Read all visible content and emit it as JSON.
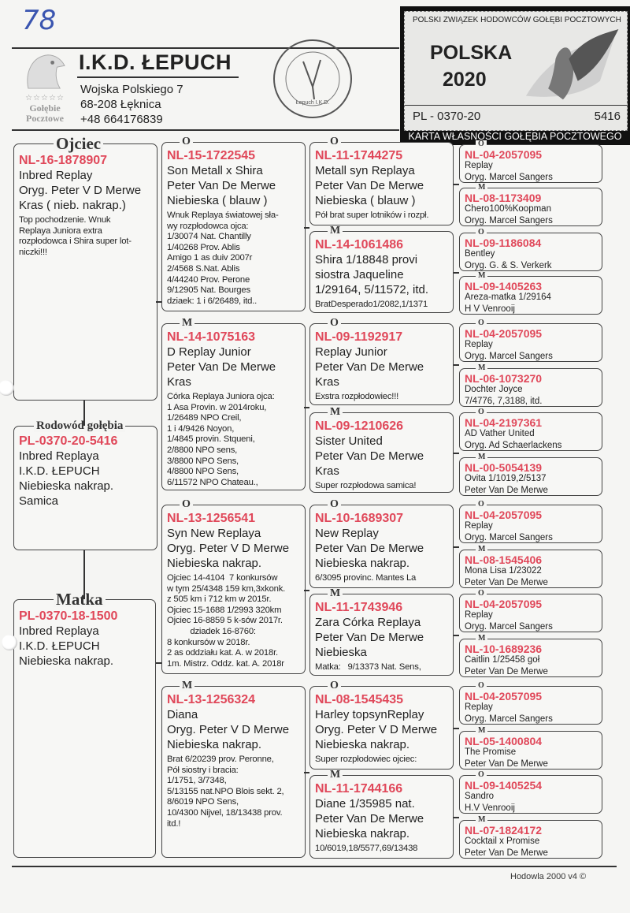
{
  "handwritten_number": "78",
  "header": {
    "title": "I.K.D. ŁEPUCH",
    "address_lines": [
      "Wojska Polskiego 7",
      "68-208 Łęknica",
      "+48  664176839"
    ],
    "logo_text": [
      "☆☆☆☆☆",
      "Gołębie",
      "Pocztowe"
    ],
    "stamp_text": "Hodowla Gołębi Pocztowych Łepuch I.K.D. ul. Wojska Polskiego 7 68-208 Łęknica"
  },
  "card": {
    "association": "POLSKI ZWIĄZEK HODOWCÓW GOŁĘBI POCZTOWYCH",
    "country": "POLSKA",
    "year": "2020",
    "ring_prefix": "PL - 0370-20",
    "ring_number": "5416",
    "caption": "KARTA WŁASNOŚCI GOŁĘBIA POCZTOWEGO"
  },
  "colors": {
    "ring": "#e0485a",
    "border": "#444444",
    "card": "#111111"
  },
  "pedigree": {
    "father": {
      "label": "Ojciec",
      "ring": "NL-16-1878907",
      "lines": [
        "Inbred Replay",
        "Oryg. Peter V D Merwe",
        "Kras  ( nieb. nakrap.)"
      ],
      "note": "Top pochodzenie. Wnuk\nReplaya Juniora extra\nrozpłodowca i Shira super lot-\nniczki!!!"
    },
    "subject": {
      "label": "Rodowód gołębia",
      "ring": "PL-0370-20-5416",
      "lines": [
        "Inbred Replaya",
        "I.K.D. ŁEPUCH",
        "Niebieska nakrap.",
        "Samica"
      ],
      "note": ""
    },
    "mother": {
      "label": "Matka",
      "ring": "PL-0370-18-1500",
      "lines": [
        "Inbred Replaya",
        "I.K.D. ŁEPUCH",
        "Niebieska nakrap."
      ],
      "note": ""
    },
    "gen2": [
      {
        "label": "O",
        "ring": "NL-15-1722545",
        "lines": [
          "Son Metall x Shira",
          "Peter Van De Merwe",
          "Niebieska ( blauw )"
        ],
        "note": "Wnuk Replaya światowej sła-\nwy rozpłodowca ojca:\n1/30074 Nat. Chantilly\n1/40268 Prov. Ablis\nAmigo 1 as duiv 2007r\n2/4568 S.Nat. Ablis\n4/44240 Prov. Perone\n9/12905 Nat. Bourges\ndziaek: 1 i 6/26489, itd.."
      },
      {
        "label": "M",
        "ring": "NL-14-1075163",
        "lines": [
          "D Replay Junior",
          "Peter Van De Merwe",
          "Kras"
        ],
        "note": "Córka Replaya Juniora ojca:\n1 Asa Provin. w 2014roku,\n1/26489 NPO Creil,\n1 i 4/9426 Noyon,\n1/4845 provin. Stqueni,\n2/8800 NPO sens,\n3/8800 NPO Sens,\n4/8800 NPO Sens,\n6/11572 NPO Chateau.,"
      },
      {
        "label": "O",
        "ring": "NL-13-1256541",
        "lines": [
          "Syn New Replaya",
          "Oryg. Peter V D Merwe",
          "Niebieska nakrap."
        ],
        "note": "Ojciec 14-4104  7 konkursów\nw tym 25/4348 159 km,3xkonk.\nz 505 km i 712 km w 2015r.\nOjciec 15-1688 1/2993 320km\nOjciec 16-8859 5 k-sów 2017r.\n          dziadek 16-8760:\n8 konkursów w 2018r.\n2 as oddziału kat. A. w 2018r.\n1m. Mistrz. Oddz. kat. A. 2018r"
      },
      {
        "label": "M",
        "ring": "NL-13-1256324",
        "lines": [
          "Diana",
          "Oryg. Peter V D Merwe",
          "Niebieska nakrap."
        ],
        "note": "Brat 6/20239 prov. Peronne,\nPół siostry i bracia:\n1/1751, 3/7348,\n5/13155 nat.NPO Blois sekt. 2,\n8/6019 NPO Sens,\n10/4300 Nijvel, 18/13438 prov.\nitd.!"
      }
    ],
    "gen3": [
      {
        "label": "O",
        "ring": "NL-11-1744275",
        "lines": [
          "Metall   syn Replaya",
          "Peter Van De Merwe",
          "Niebieska ( blauw )"
        ],
        "note": "Pół brat super lotników i rozpł."
      },
      {
        "label": "M",
        "ring": "NL-14-1061486",
        "lines": [
          "Shira  1/18848 provi",
          "siostra Jaqueline",
          "1/29164, 5/11572, itd."
        ],
        "note": "BratDesperado1/2082,1/1371"
      },
      {
        "label": "O",
        "ring": "NL-09-1192917",
        "lines": [
          "Replay Junior",
          "Peter Van De Merwe",
          "Kras"
        ],
        "note": "Exstra rozpłodowiec!!!"
      },
      {
        "label": "M",
        "ring": "NL-09-1210626",
        "lines": [
          "Sister United",
          "Peter Van De Merwe",
          "Kras"
        ],
        "note": "Super rozpłodowa samica!"
      },
      {
        "label": "O",
        "ring": "NL-10-1689307",
        "lines": [
          "New Replay",
          "Peter Van De Merwe",
          "Niebieska nakrap."
        ],
        "note": "6/3095 provinc. Mantes La"
      },
      {
        "label": "M",
        "ring": "NL-11-1743946",
        "lines": [
          "Zara Córka Replaya",
          "Peter Van De Merwe",
          "Niebieska"
        ],
        "note": "Matka:   9/13373 Nat. Sens,"
      },
      {
        "label": "O",
        "ring": "NL-08-1545435",
        "lines": [
          "Harley topsynReplay",
          "Oryg. Peter V D Merwe",
          "Niebieska nakrap."
        ],
        "note": "Super rozpłodowiec ojciec:"
      },
      {
        "label": "M",
        "ring": "NL-11-1744166",
        "lines": [
          "Diane  1/35985 nat.",
          "Peter Van De Merwe",
          "Niebieska nakrap."
        ],
        "note": "10/6019,18/5577,69/13438"
      }
    ],
    "gen4": [
      {
        "label": "O",
        "ring": "NL-04-2057095",
        "lines": [
          "Replay",
          "Oryg. Marcel Sangers"
        ]
      },
      {
        "label": "M",
        "ring": "NL-08-1173409",
        "lines": [
          "Chero100%Koopman",
          "Oryg. Marcel Sangers"
        ]
      },
      {
        "label": "O",
        "ring": "NL-09-1186084",
        "lines": [
          "Bentley",
          "Oryg. G. & S. Verkerk"
        ]
      },
      {
        "label": "M",
        "ring": "NL-09-1405263",
        "lines": [
          "Areza-matka 1/29164",
          "H V Venrooij"
        ]
      },
      {
        "label": "O",
        "ring": "NL-04-2057095",
        "lines": [
          "Replay",
          "Oryg. Marcel Sangers"
        ]
      },
      {
        "label": "M",
        "ring": "NL-06-1073270",
        "lines": [
          "Dochter Joyce",
          "7/4776, 7,3188, itd."
        ]
      },
      {
        "label": "O",
        "ring": "NL-04-2197361",
        "lines": [
          "AD Vather United",
          "Oryg. Ad Schaerlackens"
        ]
      },
      {
        "label": "M",
        "ring": "NL-00-5054139",
        "lines": [
          "Ovita 1/1019,2/5137",
          "Peter Van De Merwe"
        ]
      },
      {
        "label": "O",
        "ring": "NL-04-2057095",
        "lines": [
          "Replay",
          "Oryg. Marcel Sangers"
        ]
      },
      {
        "label": "M",
        "ring": "NL-08-1545406",
        "lines": [
          "Mona Lisa  1/23022",
          "Peter Van De Merwe"
        ]
      },
      {
        "label": "O",
        "ring": "NL-04-2057095",
        "lines": [
          "Replay",
          "Oryg. Marcel Sangers"
        ]
      },
      {
        "label": "M",
        "ring": "NL-10-1689236",
        "lines": [
          "Caitlin  1/25458 goł",
          "Peter Van De Merwe"
        ]
      },
      {
        "label": "O",
        "ring": "NL-04-2057095",
        "lines": [
          "Replay",
          "Oryg. Marcel Sangers"
        ]
      },
      {
        "label": "M",
        "ring": "NL-05-1400804",
        "lines": [
          "The Promise",
          "Peter Van De Merwe"
        ]
      },
      {
        "label": "O",
        "ring": "NL-09-1405254",
        "lines": [
          "Sandro",
          "H.V Venrooij"
        ]
      },
      {
        "label": "M",
        "ring": "NL-07-1824172",
        "lines": [
          "Cocktail x Promise",
          "Peter Van De Merwe"
        ]
      }
    ]
  },
  "footer": {
    "text": "Hodowla 2000 v4 ©"
  }
}
